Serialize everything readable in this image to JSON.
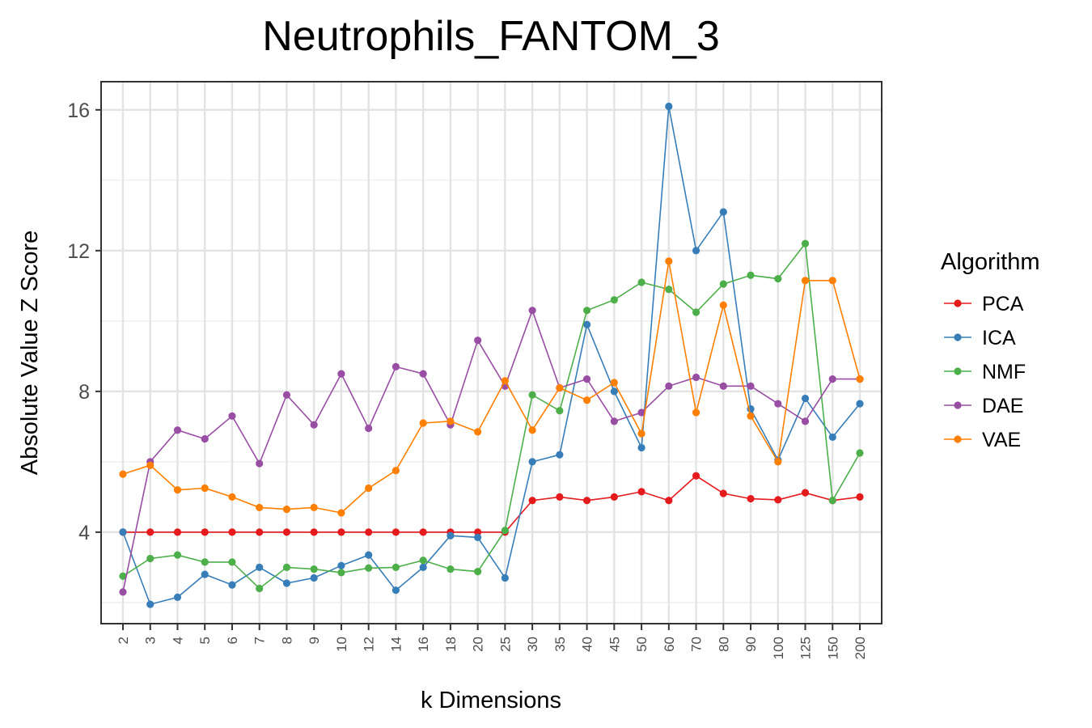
{
  "chart_data": {
    "type": "line",
    "title": "Neutrophils_FANTOM_3",
    "xlabel": "k Dimensions",
    "ylabel": "Absolute Value Z Score",
    "ylim": [
      1.4,
      16.8
    ],
    "yticks": [
      "4",
      "8",
      "12",
      "16"
    ],
    "grid": true,
    "legend_position": "right",
    "legend_title": "Algorithm",
    "categories": [
      "2",
      "3",
      "4",
      "5",
      "6",
      "7",
      "8",
      "9",
      "10",
      "12",
      "14",
      "16",
      "18",
      "20",
      "25",
      "30",
      "35",
      "40",
      "45",
      "50",
      "60",
      "70",
      "80",
      "90",
      "100",
      "125",
      "150",
      "200"
    ],
    "series": [
      {
        "name": "PCA",
        "color": "#e41a1c",
        "values": [
          4.0,
          4.0,
          4.0,
          4.0,
          4.0,
          4.0,
          4.0,
          4.0,
          4.0,
          4.0,
          4.0,
          4.0,
          4.0,
          4.0,
          4.0,
          4.9,
          5.0,
          4.9,
          5.0,
          5.15,
          4.9,
          5.6,
          5.1,
          4.95,
          4.92,
          5.12,
          4.9,
          5.0
        ]
      },
      {
        "name": "ICA",
        "color": "#377eb8",
        "values": [
          4.0,
          1.95,
          2.15,
          2.8,
          2.5,
          3.0,
          2.55,
          2.7,
          3.05,
          3.35,
          2.35,
          3.0,
          3.9,
          3.85,
          2.7,
          6.0,
          6.2,
          9.9,
          8.0,
          6.4,
          16.1,
          12.0,
          13.1,
          7.5,
          6.05,
          7.8,
          6.7,
          7.65
        ]
      },
      {
        "name": "NMF",
        "color": "#4daf4a",
        "values": [
          2.75,
          3.25,
          3.35,
          3.15,
          3.15,
          2.4,
          3.0,
          2.95,
          2.85,
          2.98,
          3.0,
          3.2,
          2.95,
          2.88,
          4.05,
          7.9,
          7.45,
          10.3,
          10.6,
          11.1,
          10.9,
          10.25,
          11.05,
          11.3,
          11.2,
          12.2,
          4.9,
          6.25
        ]
      },
      {
        "name": "DAE",
        "color": "#984ea3",
        "values": [
          2.3,
          6.0,
          6.9,
          6.65,
          7.3,
          5.95,
          7.9,
          7.05,
          8.5,
          6.95,
          8.7,
          8.5,
          7.05,
          9.45,
          8.15,
          10.3,
          8.1,
          8.35,
          7.15,
          7.4,
          8.15,
          8.4,
          8.15,
          8.15,
          7.65,
          7.15,
          8.35,
          8.35
        ]
      },
      {
        "name": "VAE",
        "color": "#ff7f00",
        "values": [
          5.65,
          5.9,
          5.2,
          5.25,
          5.0,
          4.7,
          4.65,
          4.7,
          4.55,
          5.25,
          5.75,
          7.1,
          7.15,
          6.85,
          8.3,
          6.9,
          8.1,
          7.75,
          8.25,
          6.8,
          11.7,
          7.4,
          10.45,
          7.3,
          6.0,
          11.15,
          11.15,
          8.35
        ]
      }
    ]
  }
}
